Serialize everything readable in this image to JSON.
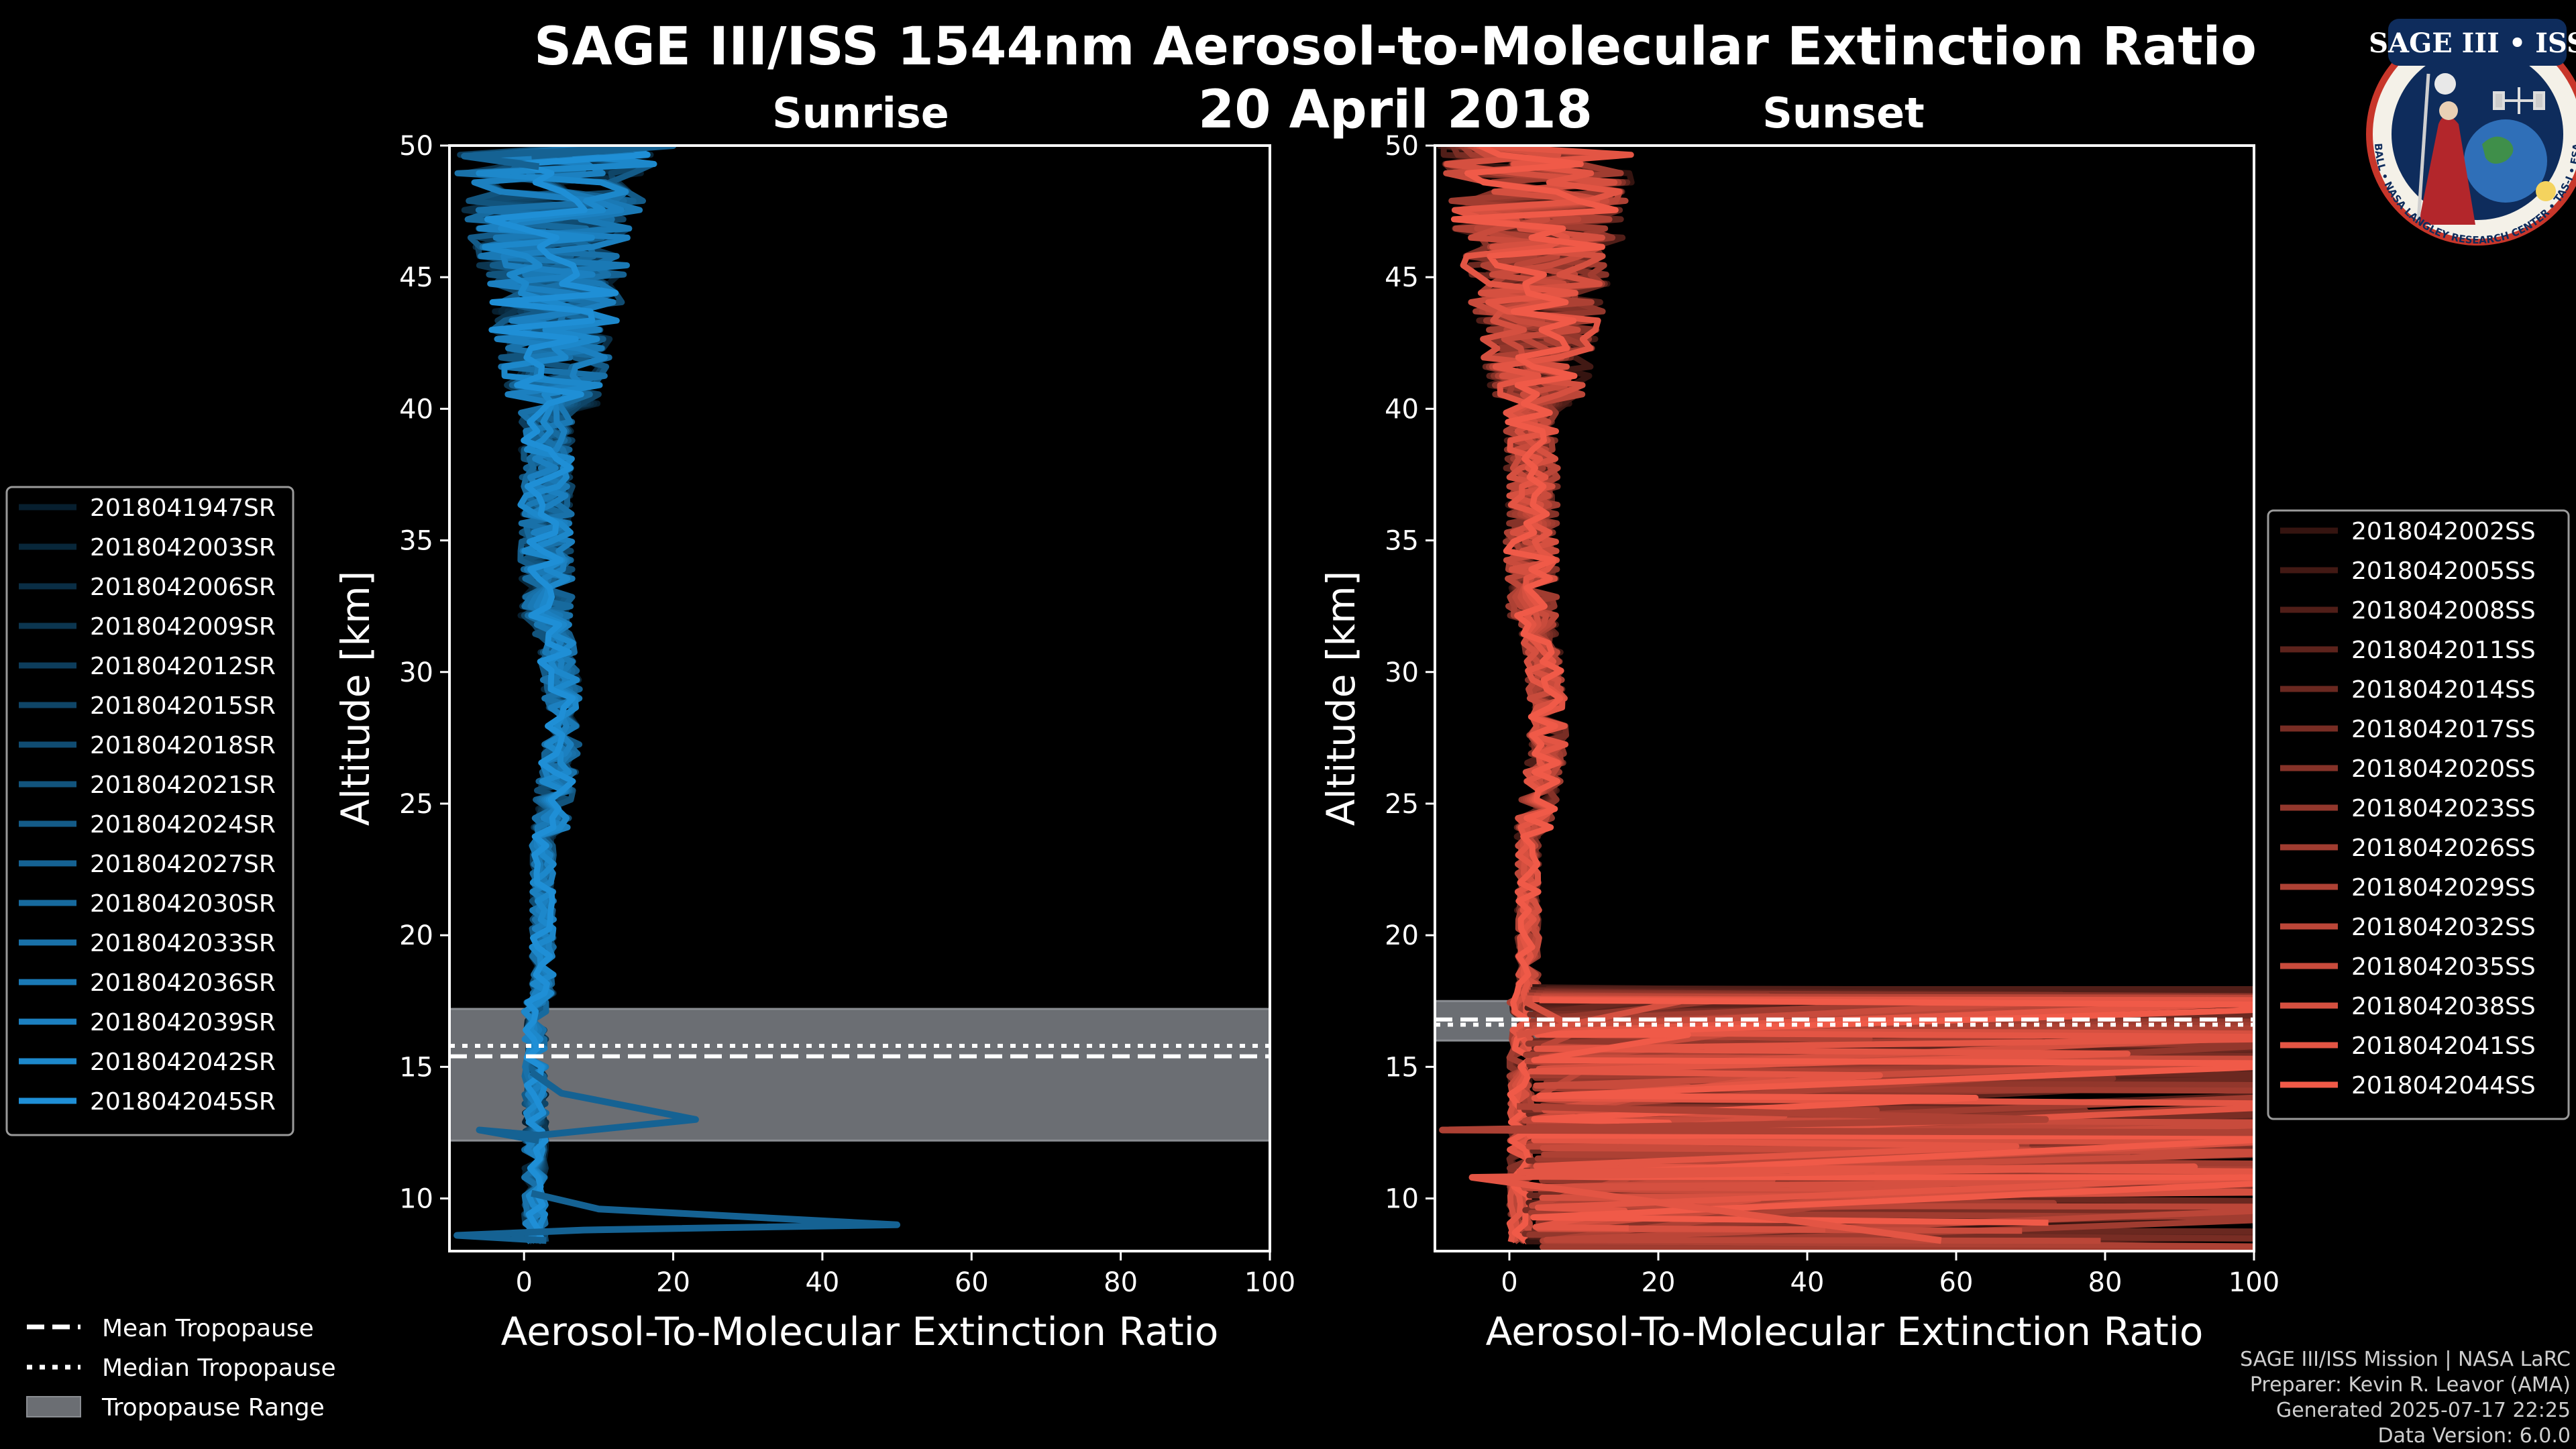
{
  "header": {
    "title": "SAGE III/ISS 1544nm Aerosol-to-Molecular Extinction Ratio",
    "date": "20 April 2018",
    "left_subtitle": "Sunrise",
    "right_subtitle": "Sunset"
  },
  "logo": {
    "title": "SAGE III • ISS",
    "ring_text": "BALL • NASA LANGLEY RESEARCH CENTER • TAS-I • ESA"
  },
  "credits": {
    "line1": "SAGE III/ISS Mission | NASA LaRC",
    "line2": "Preparer: Kevin R. Leavor (AMA)",
    "line3": "Generated 2025-07-17 22:25",
    "line4": "Data Version: 6.0.0"
  },
  "tropopause_legend": {
    "mean": "Mean Tropopause",
    "median": "Median Tropopause",
    "range": "Tropopause Range"
  },
  "colors": {
    "sunrise": "#1f8fd6",
    "sunset": "#f05a48",
    "tropo_band": "#6b6e73",
    "background": "#000000"
  },
  "chart_data": [
    {
      "type": "line",
      "panel": "Sunrise",
      "xlabel": "Aerosol-To-Molecular Extinction Ratio",
      "ylabel": "Altitude [km]",
      "xlim": [
        -10,
        100
      ],
      "ylim": [
        8,
        50
      ],
      "xticks": [
        0,
        20,
        40,
        60,
        80,
        100
      ],
      "yticks": [
        10,
        15,
        20,
        25,
        30,
        35,
        40,
        45,
        50
      ],
      "tropopause": {
        "mean": 15.4,
        "median": 15.8,
        "range": [
          12.2,
          17.2
        ]
      },
      "series": [
        {
          "name": "2018041947SR"
        },
        {
          "name": "2018042003SR"
        },
        {
          "name": "2018042006SR"
        },
        {
          "name": "2018042009SR"
        },
        {
          "name": "2018042012SR"
        },
        {
          "name": "2018042015SR"
        },
        {
          "name": "2018042018SR"
        },
        {
          "name": "2018042021SR"
        },
        {
          "name": "2018042024SR"
        },
        {
          "name": "2018042027SR"
        },
        {
          "name": "2018042030SR"
        },
        {
          "name": "2018042033SR"
        },
        {
          "name": "2018042036SR"
        },
        {
          "name": "2018042039SR"
        },
        {
          "name": "2018042042SR"
        },
        {
          "name": "2018042045SR"
        }
      ],
      "features": [
        {
          "series": 5,
          "points": [
            [
              1,
              14.8
            ],
            [
              5,
              14
            ],
            [
              23,
              13
            ],
            [
              2,
              12.4
            ],
            [
              -6,
              12.6
            ],
            [
              2,
              12.2
            ]
          ]
        },
        {
          "series": 9,
          "points": [
            [
              1,
              10.2
            ],
            [
              10,
              9.6
            ],
            [
              50,
              9
            ],
            [
              8,
              8.8
            ],
            [
              -9,
              8.6
            ],
            [
              3,
              8.4
            ]
          ]
        },
        {
          "series": 2,
          "points": [
            [
              1,
              49.6
            ],
            [
              20,
              50
            ],
            [
              -8,
              49.6
            ],
            [
              2,
              49.2
            ]
          ]
        }
      ]
    },
    {
      "type": "line",
      "panel": "Sunset",
      "xlabel": "Aerosol-To-Molecular Extinction Ratio",
      "ylabel": "Altitude [km]",
      "xlim": [
        -10,
        100
      ],
      "ylim": [
        8,
        50
      ],
      "xticks": [
        0,
        20,
        40,
        60,
        80,
        100
      ],
      "yticks": [
        10,
        15,
        20,
        25,
        30,
        35,
        40,
        45,
        50
      ],
      "tropopause": {
        "mean": 16.8,
        "median": 16.6,
        "range": [
          16.0,
          17.5
        ]
      },
      "series": [
        {
          "name": "2018042002SS"
        },
        {
          "name": "2018042005SS"
        },
        {
          "name": "2018042008SS"
        },
        {
          "name": "2018042011SS"
        },
        {
          "name": "2018042014SS"
        },
        {
          "name": "2018042017SS"
        },
        {
          "name": "2018042020SS"
        },
        {
          "name": "2018042023SS"
        },
        {
          "name": "2018042026SS"
        },
        {
          "name": "2018042029SS"
        },
        {
          "name": "2018042032SS"
        },
        {
          "name": "2018042035SS"
        },
        {
          "name": "2018042038SS"
        },
        {
          "name": "2018042041SS"
        },
        {
          "name": "2018042044SS"
        }
      ],
      "features": [
        {
          "series": 12,
          "points": [
            [
              2,
              17.5
            ],
            [
              8,
              16.6
            ],
            [
              1,
              16.2
            ]
          ]
        },
        {
          "series": 9,
          "points": [
            [
              1,
              13.5
            ],
            [
              72,
              13
            ],
            [
              -9,
              12.6
            ],
            [
              100,
              12.5
            ]
          ]
        },
        {
          "series": 13,
          "points": [
            [
              1,
              11
            ],
            [
              92,
              11.2
            ],
            [
              -5,
              10.8
            ],
            [
              58,
              8.4
            ]
          ]
        }
      ]
    }
  ]
}
